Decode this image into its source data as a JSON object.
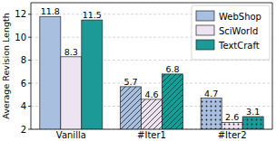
{
  "chart_data": {
    "type": "bar",
    "categories": [
      "Vanilla",
      "#Iter1",
      "#Iter2"
    ],
    "series": [
      {
        "name": "WebShop",
        "color": "#a9bfe0",
        "values": [
          11.8,
          5.7,
          4.7
        ]
      },
      {
        "name": "SciWorld",
        "color": "#ede4f1",
        "values": [
          8.3,
          4.6,
          2.6
        ]
      },
      {
        "name": "TextCraft",
        "color": "#1c9a98",
        "values": [
          11.5,
          6.8,
          3.1
        ]
      }
    ],
    "y_label": "Average Revision Length",
    "ylim": [
      2,
      13
    ],
    "yticks": [
      2,
      4,
      6,
      8,
      10,
      12
    ],
    "grid": true,
    "legend": "upper right",
    "data_labels": true
  }
}
